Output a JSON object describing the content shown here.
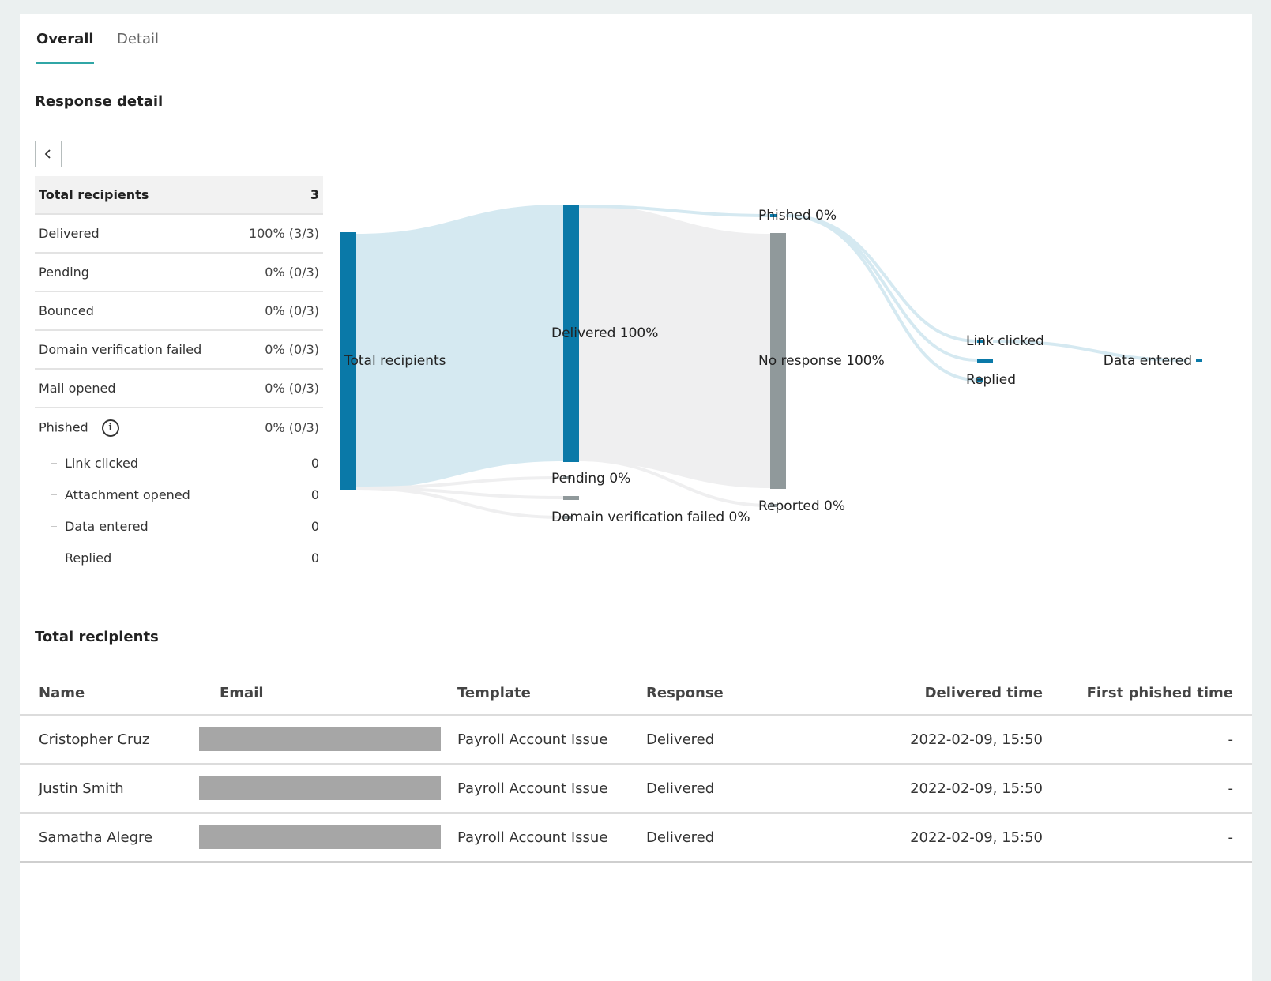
{
  "tabs": {
    "overall": "Overall",
    "detail": "Detail"
  },
  "response_detail": {
    "title": "Response detail",
    "back_icon": "chevron-left-icon"
  },
  "summary": {
    "header": {
      "label": "Total recipients",
      "value": "3"
    },
    "rows": [
      {
        "label": "Delivered",
        "value": "100% (3/3)"
      },
      {
        "label": "Pending",
        "value": "0% (0/3)"
      },
      {
        "label": "Bounced",
        "value": "0% (0/3)"
      },
      {
        "label": "Domain verification failed",
        "value": "0% (0/3)"
      },
      {
        "label": "Mail opened",
        "value": "0% (0/3)"
      },
      {
        "label": "Phished",
        "value": "0% (0/3)",
        "icon": "info-icon"
      }
    ],
    "sub_rows": [
      {
        "label": "Link clicked",
        "value": "0"
      },
      {
        "label": "Attachment opened",
        "value": "0"
      },
      {
        "label": "Data entered",
        "value": "0"
      },
      {
        "label": "Replied",
        "value": "0"
      }
    ]
  },
  "sankey": {
    "total": "Total recipients",
    "delivered": "Delivered 100%",
    "pending": "Pending 0%",
    "domain_failed": "Domain verification failed 0%",
    "phished": "Phished 0%",
    "no_response": "No response 100%",
    "reported": "Reported 0%",
    "link_clicked": "Link clicked",
    "replied": "Replied",
    "data_entered": "Data entered",
    "colors": {
      "primary": "#0a79a8",
      "grey": "#90999b",
      "flow_blue": "#d5e9f1",
      "flow_grey": "#efeff0"
    }
  },
  "recipients": {
    "title": "Total recipients",
    "columns": {
      "name": "Name",
      "email": "Email",
      "template": "Template",
      "response": "Response",
      "delivered_time": "Delivered time",
      "first_phished_time": "First phished time"
    },
    "rows": [
      {
        "name": "Cristopher Cruz",
        "template": "Payroll Account Issue",
        "response": "Delivered",
        "delivered_time": "2022-02-09, 15:50",
        "first_phished_time": "-"
      },
      {
        "name": "Justin Smith",
        "template": "Payroll Account Issue",
        "response": "Delivered",
        "delivered_time": "2022-02-09, 15:50",
        "first_phished_time": "-"
      },
      {
        "name": "Samatha Alegre",
        "template": "Payroll Account Issue",
        "response": "Delivered",
        "delivered_time": "2022-02-09, 15:50",
        "first_phished_time": "-"
      }
    ]
  }
}
